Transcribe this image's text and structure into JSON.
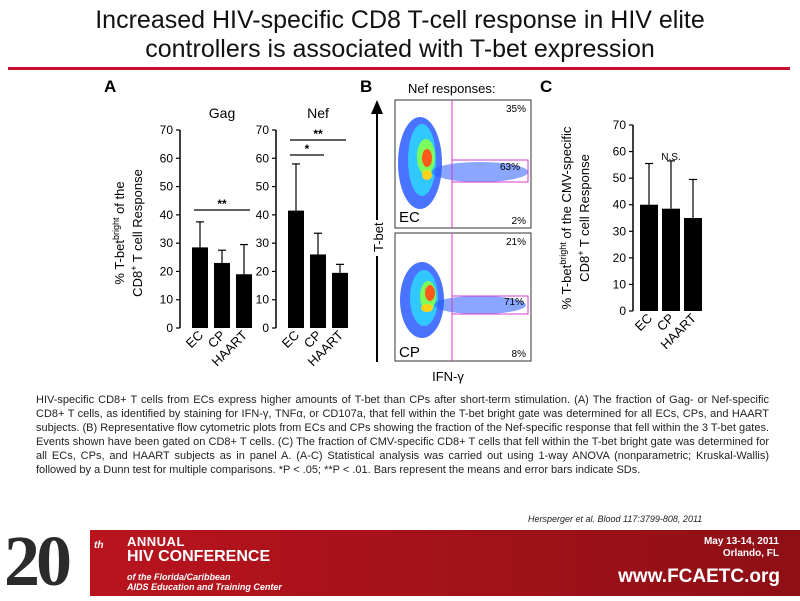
{
  "slide": {
    "title_line1": "Increased HIV-specific CD8 T-cell response in HIV elite",
    "title_line2": "controllers is associated with T-bet expression",
    "accent_color": "#c8102e"
  },
  "panels": {
    "A": "A",
    "B": "B",
    "C": "C",
    "ylabel_AC_line1_pre": "% T-bet",
    "ylabel_AC_line1_sup": "bright",
    "ylabel_AC_line1_post": " of the",
    "ylabel_A_line2_pre": "CD8",
    "ylabel_A_line2_sup": "+",
    "ylabel_A_line2_post": " T cell Response",
    "ylabel_C_line1_post": " of the CMV-specific",
    "ylabel_C_line2_pre": "CD8",
    "ylabel_C_line2_post": " T cell Response",
    "flow_title": "Nef responses:",
    "flow_ylabel": "T-bet",
    "flow_xlabel": "IFN-γ",
    "flow_top": {
      "group": "EC",
      "top_pct": "35%",
      "mid_pct": "63%",
      "bot_pct": "2%"
    },
    "flow_bottom": {
      "group": "CP",
      "top_pct": "21%",
      "mid_pct": "71%",
      "bot_pct": "8%"
    },
    "ns_label": "N.S."
  },
  "chart_data": [
    {
      "type": "bar",
      "title": "Gag",
      "categories": [
        "EC",
        "CP",
        "HAART"
      ],
      "values": [
        28.5,
        23,
        19
      ],
      "error": [
        9,
        4.5,
        10.5
      ],
      "ylim": [
        0,
        70
      ],
      "yticks": [
        0,
        10,
        20,
        30,
        40,
        50,
        60,
        70
      ],
      "annotations": [
        {
          "label": "**",
          "from": "EC",
          "to": "HAART"
        }
      ]
    },
    {
      "type": "bar",
      "title": "Nef",
      "categories": [
        "EC",
        "CP",
        "HAART"
      ],
      "values": [
        41.5,
        26,
        19.5
      ],
      "error": [
        16.5,
        7.5,
        3
      ],
      "ylim": [
        0,
        70
      ],
      "yticks": [
        0,
        10,
        20,
        30,
        40,
        50,
        60,
        70
      ],
      "annotations": [
        {
          "label": "*",
          "from": "EC",
          "to": "CP"
        },
        {
          "label": "**",
          "from": "EC",
          "to": "HAART"
        }
      ]
    },
    {
      "type": "bar",
      "title": "",
      "categories": [
        "EC",
        "CP",
        "HAART"
      ],
      "values": [
        40,
        38.5,
        35
      ],
      "error": [
        15.5,
        18,
        14.5
      ],
      "ylim": [
        0,
        70
      ],
      "yticks": [
        0,
        10,
        20,
        30,
        40,
        50,
        60,
        70
      ],
      "annotations": [
        {
          "label": "N.S.",
          "from": "CP",
          "to": "CP"
        }
      ]
    }
  ],
  "caption": "HIV-specific CD8+ T cells from ECs express higher amounts of T-bet than CPs after short-term stimulation. (A) The fraction of Gag- or Nef-specific CD8+ T cells, as identified by staining for IFN-γ, TNFα, or CD107a, that fell within the T-bet bright gate was determined for all ECs, CPs, and HAART subjects. (B) Representative flow cytometric plots from ECs and CPs showing the fraction of the Nef-specific response that fell within the 3 T-bet gates. Events shown have been gated on CD8+ T cells. (C) The fraction of CMV-specific CD8+ T cells that fell within the T-bet bright gate was determined for all ECs, CPs, and HAART subjects as in panel A. (A-C) Statistical analysis was carried out using 1-way ANOVA (nonparametric; Kruskal-Wallis) followed by a Dunn test for multiple comparisons. *P < .05; **P < .01. Bars represent the means and error bars indicate SDs.",
  "citation": "Hersperger et al. Blood 117:3799-808, 2011",
  "banner": {
    "number": "20",
    "ordinal": "th",
    "annual": "ANNUAL",
    "conference": "HIV CONFERENCE",
    "sub_line1": "of the Florida/Caribbean",
    "sub_line2": "AIDS Education and Training Center",
    "date": "May 13-14, 2011",
    "location": "Orlando, FL",
    "website": "www.FCAETC.org",
    "banner_color": "#b9141e"
  }
}
